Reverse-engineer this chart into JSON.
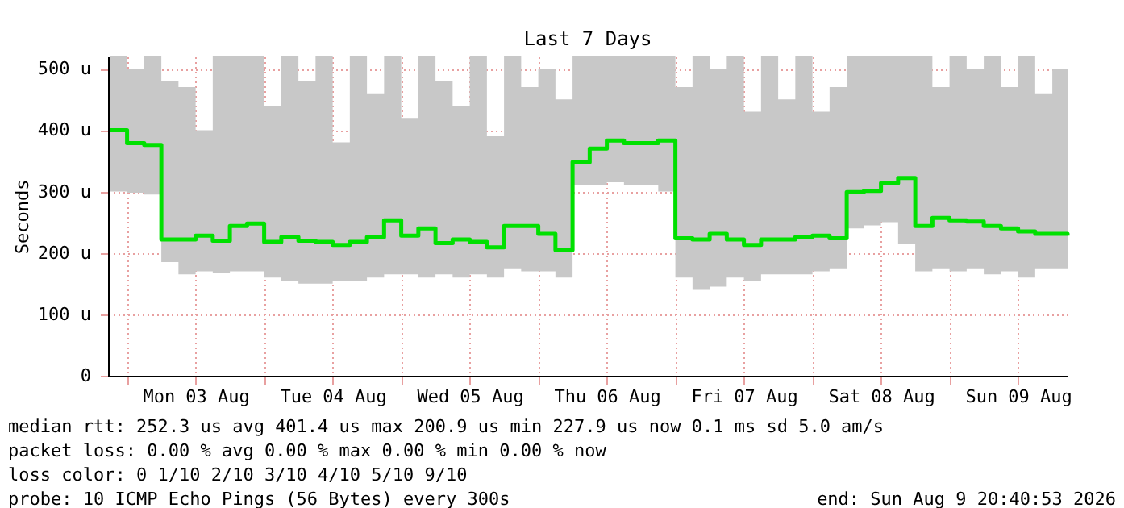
{
  "chart_data": {
    "type": "step",
    "title": "Last 7 Days",
    "ylabel": "Seconds",
    "x": [
      "2026-08-02T21:00",
      "2026-08-03T00:00",
      "2026-08-03T03:00",
      "2026-08-03T06:00",
      "2026-08-03T09:00",
      "2026-08-03T12:00",
      "2026-08-03T15:00",
      "2026-08-03T18:00",
      "2026-08-03T21:00",
      "2026-08-04T00:00",
      "2026-08-04T03:00",
      "2026-08-04T06:00",
      "2026-08-04T09:00",
      "2026-08-04T12:00",
      "2026-08-04T15:00",
      "2026-08-04T18:00",
      "2026-08-04T21:00",
      "2026-08-05T00:00",
      "2026-08-05T03:00",
      "2026-08-05T06:00",
      "2026-08-05T09:00",
      "2026-08-05T12:00",
      "2026-08-05T15:00",
      "2026-08-05T18:00",
      "2026-08-05T21:00",
      "2026-08-06T00:00",
      "2026-08-06T03:00",
      "2026-08-06T06:00",
      "2026-08-06T09:00",
      "2026-08-06T12:00",
      "2026-08-06T15:00",
      "2026-08-06T18:00",
      "2026-08-06T21:00",
      "2026-08-07T00:00",
      "2026-08-07T03:00",
      "2026-08-07T06:00",
      "2026-08-07T09:00",
      "2026-08-07T12:00",
      "2026-08-07T15:00",
      "2026-08-07T18:00",
      "2026-08-07T21:00",
      "2026-08-08T00:00",
      "2026-08-08T03:00",
      "2026-08-08T06:00",
      "2026-08-08T09:00",
      "2026-08-08T12:00",
      "2026-08-08T15:00",
      "2026-08-08T18:00",
      "2026-08-08T21:00",
      "2026-08-09T00:00",
      "2026-08-09T03:00",
      "2026-08-09T06:00",
      "2026-08-09T09:00",
      "2026-08-09T12:00",
      "2026-08-09T15:00",
      "2026-08-09T18:00",
      "2026-08-09T20:40"
    ],
    "series": [
      {
        "color": "#00e000",
        "values": [
          400,
          379,
          376,
          222,
          222,
          228,
          220,
          244,
          248,
          218,
          226,
          220,
          218,
          213,
          218,
          226,
          253,
          228,
          240,
          216,
          222,
          218,
          209,
          244,
          244,
          231,
          205,
          348,
          370,
          383,
          379,
          379,
          383,
          224,
          222,
          231,
          222,
          213,
          222,
          222,
          226,
          228,
          224,
          299,
          301,
          314,
          322,
          244,
          257,
          253,
          251,
          244,
          240,
          235,
          231,
          231,
          228
        ],
        "lower": [
          300,
          298,
          295,
          185,
          165,
          170,
          168,
          170,
          170,
          160,
          155,
          150,
          150,
          155,
          155,
          160,
          165,
          165,
          160,
          165,
          160,
          165,
          160,
          175,
          170,
          170,
          160,
          310,
          310,
          315,
          310,
          310,
          300,
          160,
          140,
          145,
          160,
          155,
          165,
          165,
          165,
          170,
          175,
          240,
          245,
          250,
          215,
          170,
          175,
          170,
          175,
          165,
          170,
          160,
          175,
          175,
          180
        ],
        "upper": [
          520,
          500,
          520,
          480,
          470,
          400,
          520,
          520,
          520,
          440,
          520,
          480,
          520,
          380,
          520,
          460,
          520,
          420,
          520,
          480,
          440,
          520,
          390,
          520,
          470,
          500,
          450,
          520,
          520,
          520,
          520,
          520,
          520,
          470,
          520,
          500,
          520,
          430,
          520,
          450,
          520,
          430,
          470,
          520,
          520,
          520,
          520,
          520,
          470,
          520,
          500,
          520,
          470,
          520,
          460,
          500,
          520
        ]
      }
    ],
    "ylim": [
      0,
      520
    ],
    "yticks": [
      0,
      {
        "value": 100,
        "label": "100 u"
      },
      {
        "value": 200,
        "label": "200 u"
      },
      {
        "value": 300,
        "label": "300 u"
      },
      {
        "value": 400,
        "label": "400 u"
      },
      {
        "value": 500,
        "label": "500 u"
      }
    ],
    "xlim": [
      "2026-08-02T20:40",
      "2026-08-09T20:40"
    ],
    "xticks": [
      {
        "value": "2026-08-03T00:00",
        "label": null
      },
      {
        "value": "2026-08-03T12:00",
        "label": "Mon 03 Aug"
      },
      {
        "value": "2026-08-04T00:00",
        "label": null
      },
      {
        "value": "2026-08-04T12:00",
        "label": "Tue 04 Aug"
      },
      {
        "value": "2026-08-05T00:00",
        "label": null
      },
      {
        "value": "2026-08-05T12:00",
        "label": "Wed 05 Aug"
      },
      {
        "value": "2026-08-06T00:00",
        "label": null
      },
      {
        "value": "2026-08-06T12:00",
        "label": "Thu 06 Aug"
      },
      {
        "value": "2026-08-07T00:00",
        "label": null
      },
      {
        "value": "2026-08-07T12:00",
        "label": "Fri 07 Aug"
      },
      {
        "value": "2026-08-08T00:00",
        "label": null
      },
      {
        "value": "2026-08-08T12:00",
        "label": "Sat 08 Aug"
      },
      {
        "value": "2026-08-09T00:00",
        "label": null
      },
      {
        "value": "2026-08-09T12:00",
        "label": "Sun 09 Aug"
      }
    ],
    "grid": true,
    "marker": "none",
    "line_style": "solid",
    "annotations": [
      "median rtt:  252.3 us avg  401.4 us max  200.9 us min  227.9 us now  0.1 ms sd  5.0  am/s",
      "packet loss: 0.00 % avg  0.00 % max  0.00 % min  0.00 % now",
      "loss color:  0  1/10  2/10  3/10  4/10  5/10  9/10",
      "probe:  10 ICMP Echo Pings (56 Bytes) every 300s",
      "end: Sun Aug  9 20:40:53 2026"
    ]
  }
}
